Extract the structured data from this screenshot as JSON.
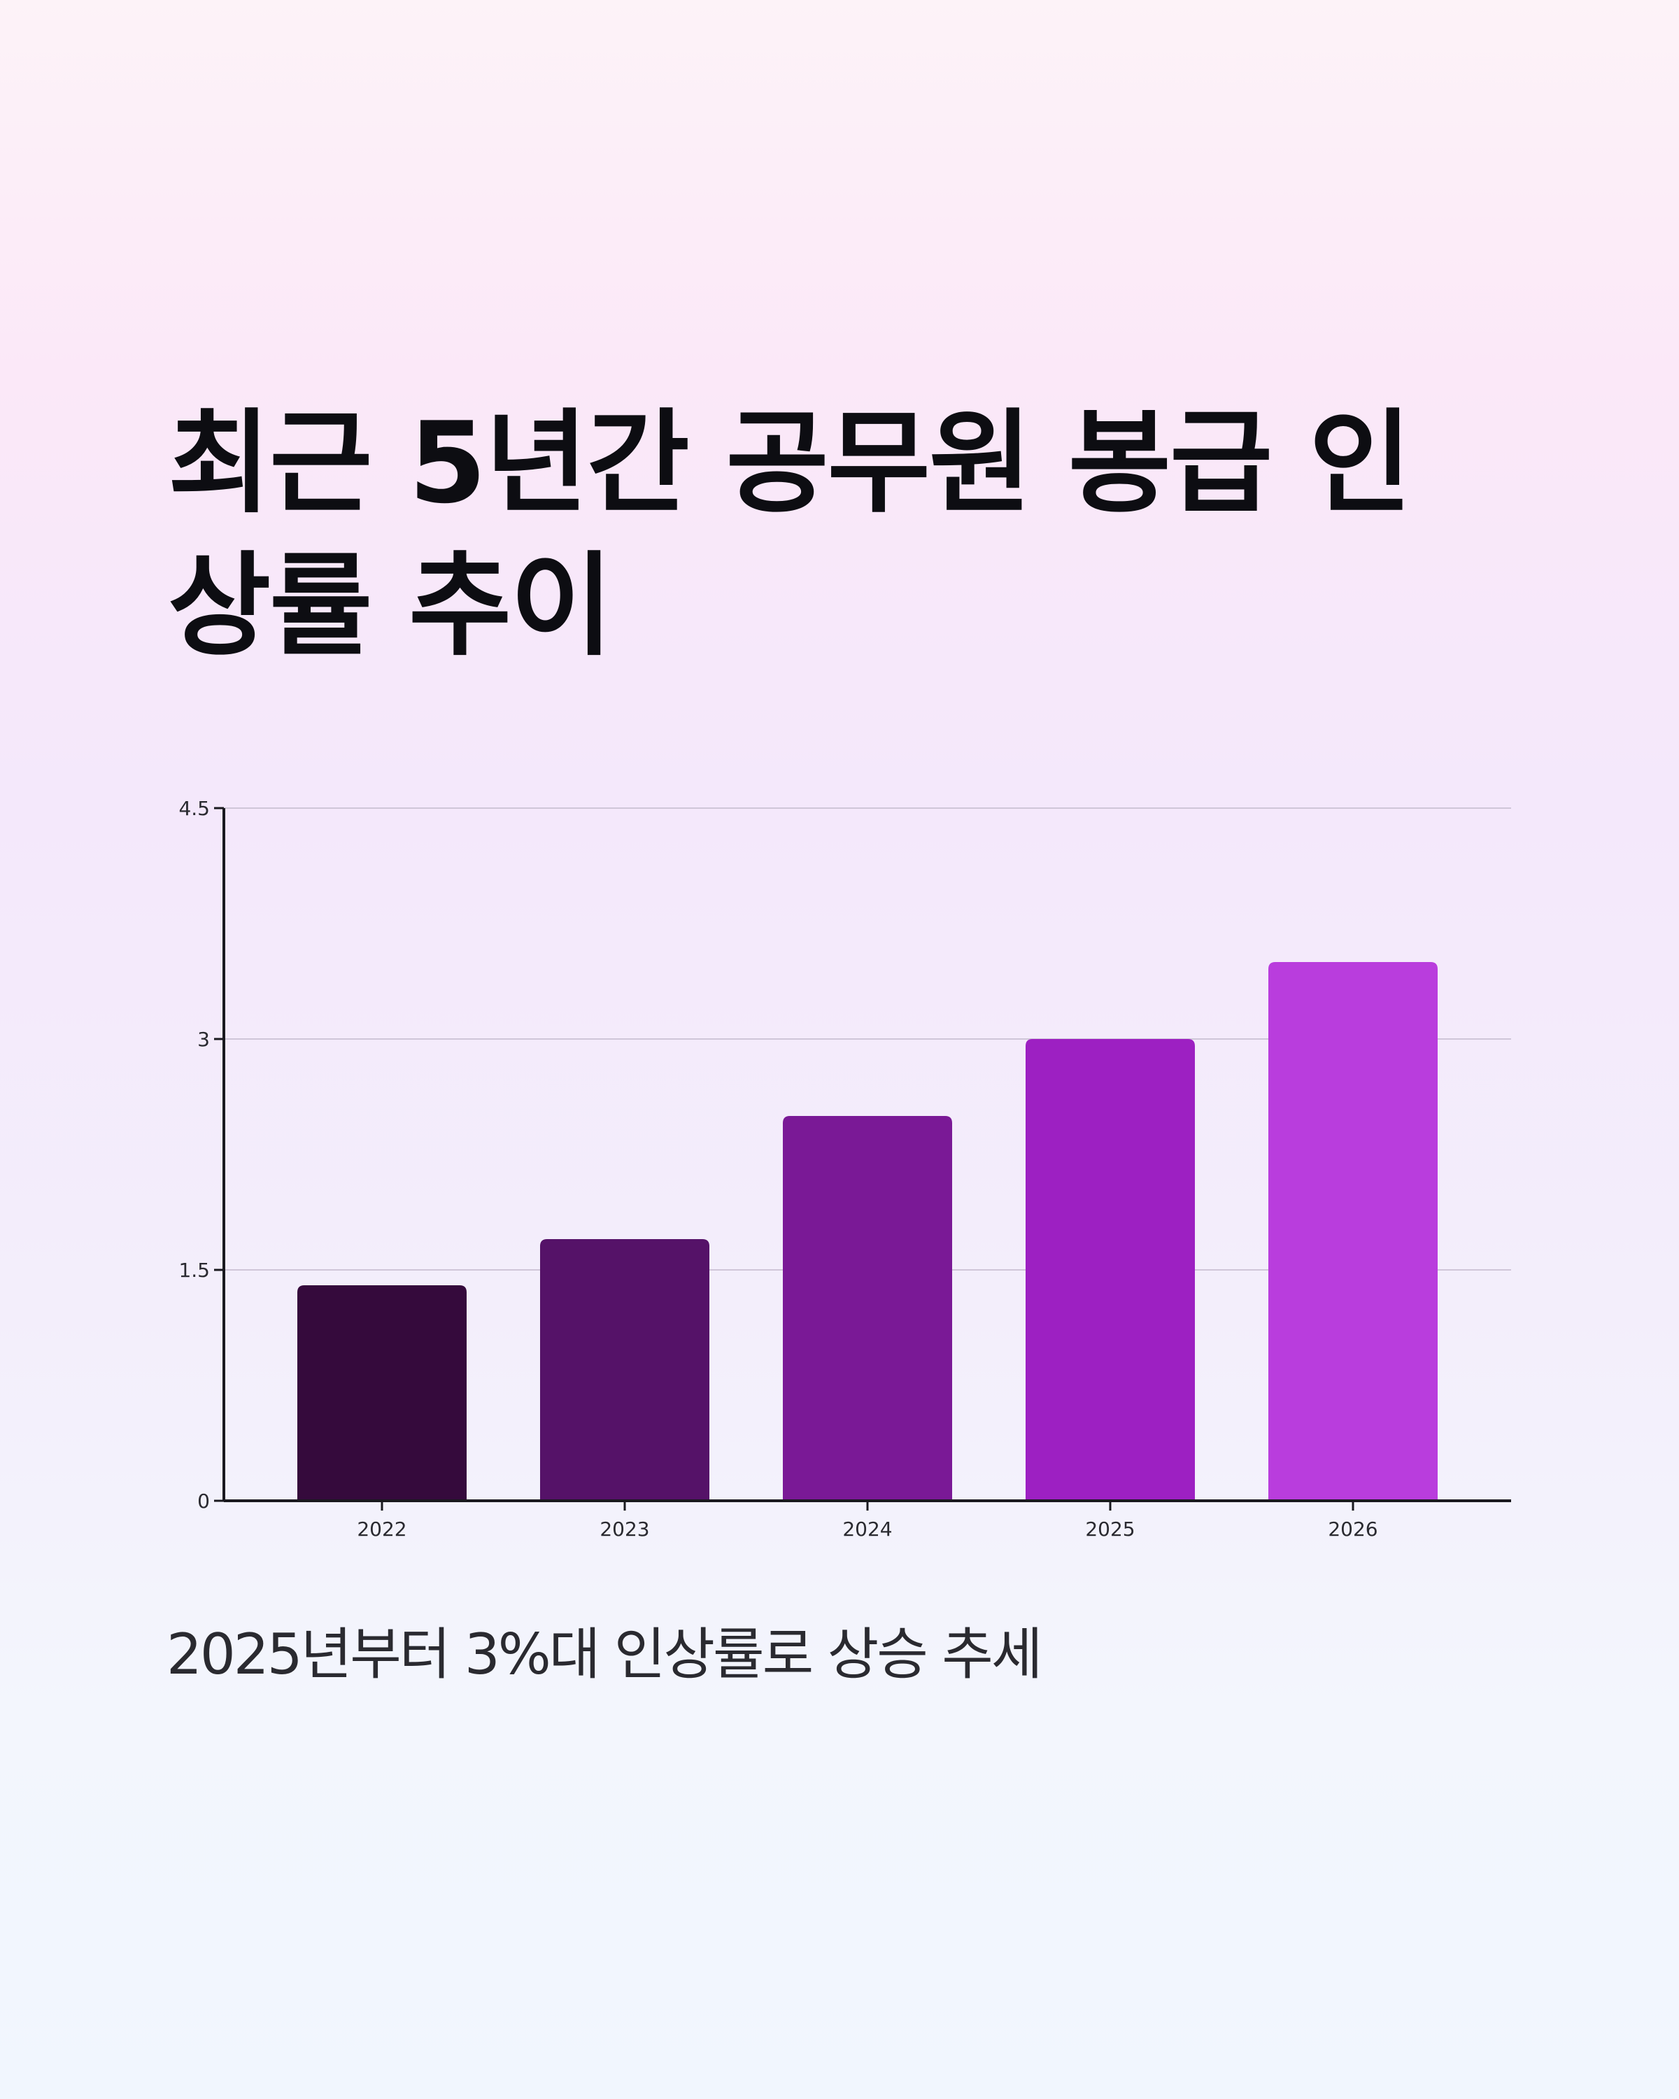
{
  "title": "최근 5년간 공무원 봉급 인상률 추이",
  "subtitle": "2025년부터 3%대 인상률로 상승 추세",
  "chart_data": {
    "type": "bar",
    "categories": [
      "2022",
      "2023",
      "2024",
      "2025",
      "2026"
    ],
    "values": [
      1.4,
      1.7,
      2.5,
      3.0,
      3.5
    ],
    "title": "최근 5년간 공무원 봉급 인상률 추이",
    "xlabel": "",
    "ylabel": "",
    "ylim": [
      0,
      4.5
    ],
    "yticks": [
      "0",
      "1.5",
      "3",
      "4.5"
    ],
    "grid": true,
    "legend": "none",
    "bar_colors": [
      "#350a3c",
      "#551268",
      "#7a1996",
      "#9d20c2",
      "#b93ddd"
    ],
    "gridline_color": "#cfc6d8",
    "axis_color": "#1a1a1f"
  }
}
